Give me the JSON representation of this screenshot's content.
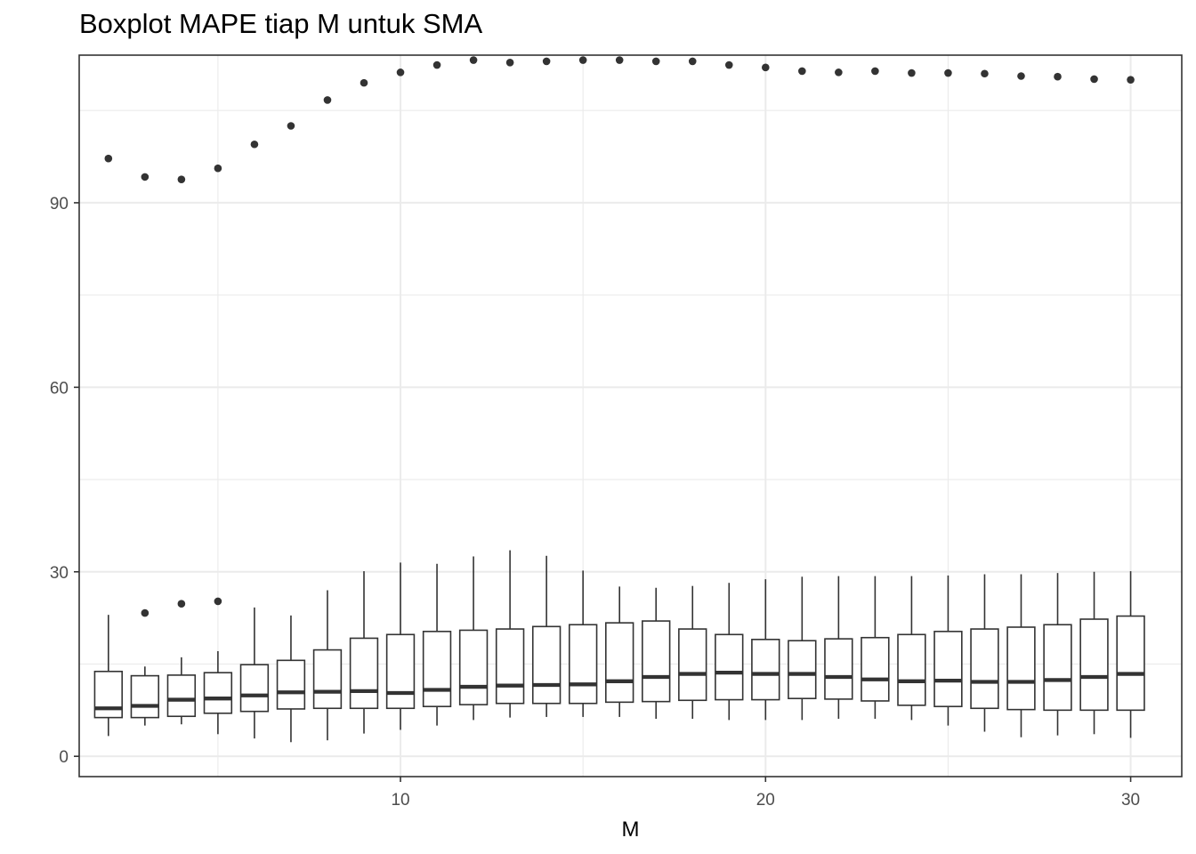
{
  "chart_data": {
    "type": "boxplot",
    "title": "Boxplot MAPE tiap M untuk SMA",
    "xlabel": "M",
    "ylabel": "",
    "xlim": [
      1.2,
      31.4
    ],
    "ylim": [
      -3.3,
      114.0
    ],
    "x_ticks": [
      10,
      20,
      30
    ],
    "y_ticks": [
      0,
      30,
      60,
      90
    ],
    "grid": true,
    "legend": "none",
    "colors": {
      "box_fill": "#ffffff",
      "box_line": "#333333",
      "grid": "#ebebeb",
      "panel_border": "#333333"
    },
    "boxes": [
      {
        "m": 2,
        "whisker_low": 3.3,
        "q1": 6.3,
        "median": 7.8,
        "q3": 13.8,
        "whisker_high": 23.0,
        "outliers": [
          97.2
        ]
      },
      {
        "m": 3,
        "whisker_low": 5.0,
        "q1": 6.3,
        "median": 8.2,
        "q3": 13.1,
        "whisker_high": 14.6,
        "outliers": [
          23.3,
          94.2
        ]
      },
      {
        "m": 4,
        "whisker_low": 5.2,
        "q1": 6.5,
        "median": 9.2,
        "q3": 13.2,
        "whisker_high": 16.1,
        "outliers": [
          24.8,
          93.8
        ]
      },
      {
        "m": 5,
        "whisker_low": 3.6,
        "q1": 7.0,
        "median": 9.4,
        "q3": 13.6,
        "whisker_high": 17.1,
        "outliers": [
          25.2,
          95.6
        ]
      },
      {
        "m": 6,
        "whisker_low": 2.9,
        "q1": 7.3,
        "median": 9.9,
        "q3": 14.9,
        "whisker_high": 24.2,
        "outliers": [
          99.5
        ]
      },
      {
        "m": 7,
        "whisker_low": 2.3,
        "q1": 7.7,
        "median": 10.4,
        "q3": 15.6,
        "whisker_high": 22.9,
        "outliers": [
          102.5
        ]
      },
      {
        "m": 8,
        "whisker_low": 2.6,
        "q1": 7.8,
        "median": 10.5,
        "q3": 17.3,
        "whisker_high": 27.0,
        "outliers": [
          106.7
        ]
      },
      {
        "m": 9,
        "whisker_low": 3.7,
        "q1": 7.8,
        "median": 10.6,
        "q3": 19.2,
        "whisker_high": 30.1,
        "outliers": [
          109.5
        ]
      },
      {
        "m": 10,
        "whisker_low": 4.3,
        "q1": 7.8,
        "median": 10.3,
        "q3": 19.8,
        "whisker_high": 31.5,
        "outliers": [
          111.2
        ]
      },
      {
        "m": 11,
        "whisker_low": 5.0,
        "q1": 8.1,
        "median": 10.8,
        "q3": 20.3,
        "whisker_high": 31.3,
        "outliers": [
          112.4
        ]
      },
      {
        "m": 12,
        "whisker_low": 5.9,
        "q1": 8.4,
        "median": 11.3,
        "q3": 20.5,
        "whisker_high": 32.5,
        "outliers": [
          113.2
        ]
      },
      {
        "m": 13,
        "whisker_low": 6.3,
        "q1": 8.6,
        "median": 11.5,
        "q3": 20.7,
        "whisker_high": 33.5,
        "outliers": [
          112.8
        ]
      },
      {
        "m": 14,
        "whisker_low": 6.4,
        "q1": 8.6,
        "median": 11.6,
        "q3": 21.1,
        "whisker_high": 32.6,
        "outliers": [
          113.0
        ]
      },
      {
        "m": 15,
        "whisker_low": 6.4,
        "q1": 8.6,
        "median": 11.7,
        "q3": 21.4,
        "whisker_high": 30.2,
        "outliers": [
          113.2
        ]
      },
      {
        "m": 16,
        "whisker_low": 6.4,
        "q1": 8.8,
        "median": 12.2,
        "q3": 21.7,
        "whisker_high": 27.6,
        "outliers": [
          113.2
        ]
      },
      {
        "m": 17,
        "whisker_low": 6.1,
        "q1": 8.9,
        "median": 12.9,
        "q3": 22.0,
        "whisker_high": 27.4,
        "outliers": [
          113.0
        ]
      },
      {
        "m": 18,
        "whisker_low": 6.1,
        "q1": 9.1,
        "median": 13.4,
        "q3": 20.7,
        "whisker_high": 27.7,
        "outliers": [
          113.0
        ]
      },
      {
        "m": 19,
        "whisker_low": 5.9,
        "q1": 9.2,
        "median": 13.6,
        "q3": 19.8,
        "whisker_high": 28.2,
        "outliers": [
          112.4
        ]
      },
      {
        "m": 20,
        "whisker_low": 5.9,
        "q1": 9.2,
        "median": 13.4,
        "q3": 19.0,
        "whisker_high": 28.8,
        "outliers": [
          112.0
        ]
      },
      {
        "m": 21,
        "whisker_low": 5.9,
        "q1": 9.4,
        "median": 13.4,
        "q3": 18.8,
        "whisker_high": 29.2,
        "outliers": [
          111.4
        ]
      },
      {
        "m": 22,
        "whisker_low": 6.1,
        "q1": 9.3,
        "median": 12.9,
        "q3": 19.1,
        "whisker_high": 29.3,
        "outliers": [
          111.2
        ]
      },
      {
        "m": 23,
        "whisker_low": 6.1,
        "q1": 9.0,
        "median": 12.5,
        "q3": 19.3,
        "whisker_high": 29.3,
        "outliers": [
          111.4
        ]
      },
      {
        "m": 24,
        "whisker_low": 5.9,
        "q1": 8.3,
        "median": 12.2,
        "q3": 19.8,
        "whisker_high": 29.3,
        "outliers": [
          111.1
        ]
      },
      {
        "m": 25,
        "whisker_low": 5.0,
        "q1": 8.1,
        "median": 12.3,
        "q3": 20.3,
        "whisker_high": 29.4,
        "outliers": [
          111.1
        ]
      },
      {
        "m": 26,
        "whisker_low": 4.0,
        "q1": 7.8,
        "median": 12.1,
        "q3": 20.7,
        "whisker_high": 29.6,
        "outliers": [
          111.0
        ]
      },
      {
        "m": 27,
        "whisker_low": 3.1,
        "q1": 7.6,
        "median": 12.1,
        "q3": 21.0,
        "whisker_high": 29.6,
        "outliers": [
          110.6
        ]
      },
      {
        "m": 28,
        "whisker_low": 3.4,
        "q1": 7.5,
        "median": 12.4,
        "q3": 21.4,
        "whisker_high": 29.8,
        "outliers": [
          110.5
        ]
      },
      {
        "m": 29,
        "whisker_low": 3.6,
        "q1": 7.5,
        "median": 12.9,
        "q3": 22.3,
        "whisker_high": 30.0,
        "outliers": [
          110.1
        ]
      },
      {
        "m": 30,
        "whisker_low": 3.0,
        "q1": 7.5,
        "median": 13.4,
        "q3": 22.8,
        "whisker_high": 30.1,
        "outliers": [
          110.0
        ]
      }
    ]
  }
}
